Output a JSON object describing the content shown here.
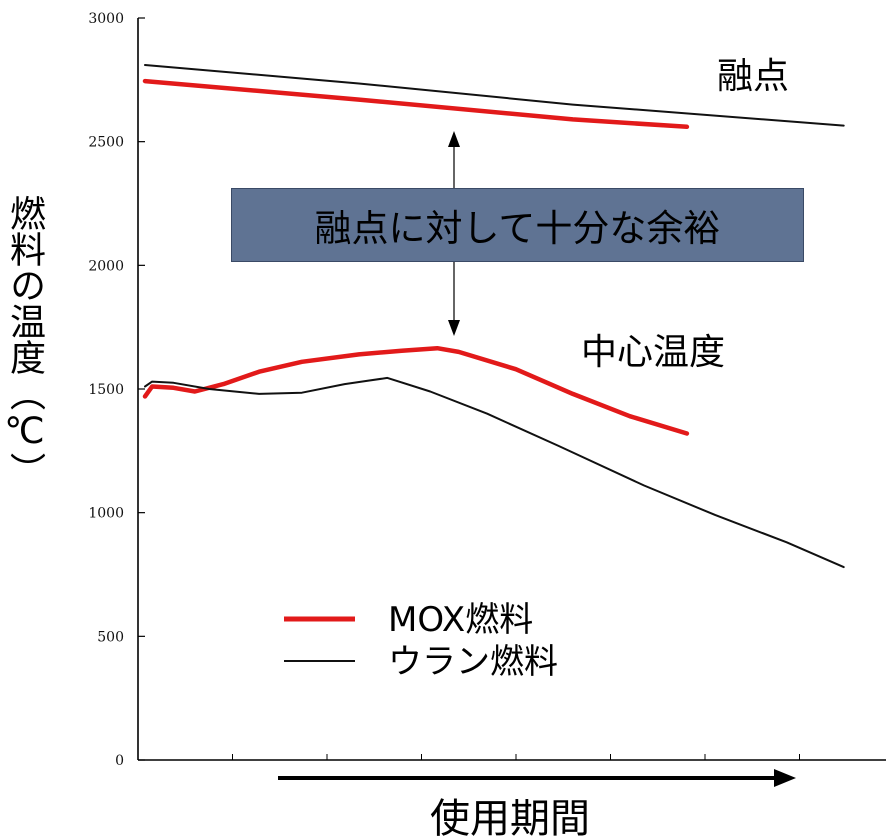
{
  "chart_data": {
    "type": "line",
    "ylabel": "燃料の温度（℃）",
    "xlabel": "使用期間",
    "ylim": [
      0,
      3000
    ],
    "yticks": [
      "0",
      "500",
      "1000",
      "1500",
      "2000",
      "2500",
      "3000"
    ],
    "x_range": [
      0,
      100
    ],
    "grid": false,
    "legend_position": "bottom-left",
    "legend": [
      {
        "label": "MOX燃料",
        "color": "#e21a1a"
      },
      {
        "label": "ウラン燃料",
        "color": "#111111"
      }
    ],
    "annotations": {
      "melting_point": "融点",
      "center_temp": "中心温度",
      "margin": "融点に対して十分な余裕"
    },
    "series": [
      {
        "name": "MOX燃料",
        "kind": "melting_point",
        "color": "#e21a1a",
        "points": [
          [
            0,
            2745
          ],
          [
            30,
            2670
          ],
          [
            60,
            2590
          ],
          [
            76,
            2560
          ]
        ]
      },
      {
        "name": "ウラン燃料",
        "kind": "melting_point",
        "color": "#111111",
        "points": [
          [
            0,
            2810
          ],
          [
            30,
            2735
          ],
          [
            60,
            2650
          ],
          [
            98,
            2565
          ]
        ]
      },
      {
        "name": "MOX燃料",
        "kind": "center_temperature",
        "color": "#e21a1a",
        "points": [
          [
            0,
            1470
          ],
          [
            1,
            1510
          ],
          [
            4,
            1505
          ],
          [
            7,
            1490
          ],
          [
            11,
            1520
          ],
          [
            16,
            1570
          ],
          [
            22,
            1610
          ],
          [
            30,
            1640
          ],
          [
            36,
            1655
          ],
          [
            41,
            1665
          ],
          [
            44,
            1650
          ],
          [
            52,
            1580
          ],
          [
            60,
            1480
          ],
          [
            68,
            1390
          ],
          [
            76,
            1320
          ]
        ]
      },
      {
        "name": "ウラン燃料",
        "kind": "center_temperature",
        "color": "#111111",
        "points": [
          [
            0,
            1510
          ],
          [
            1,
            1530
          ],
          [
            4,
            1525
          ],
          [
            9,
            1500
          ],
          [
            16,
            1480
          ],
          [
            22,
            1485
          ],
          [
            28,
            1520
          ],
          [
            34,
            1545
          ],
          [
            40,
            1490
          ],
          [
            48,
            1400
          ],
          [
            58,
            1270
          ],
          [
            70,
            1110
          ],
          [
            80,
            990
          ],
          [
            90,
            880
          ],
          [
            98,
            780
          ]
        ]
      }
    ]
  }
}
